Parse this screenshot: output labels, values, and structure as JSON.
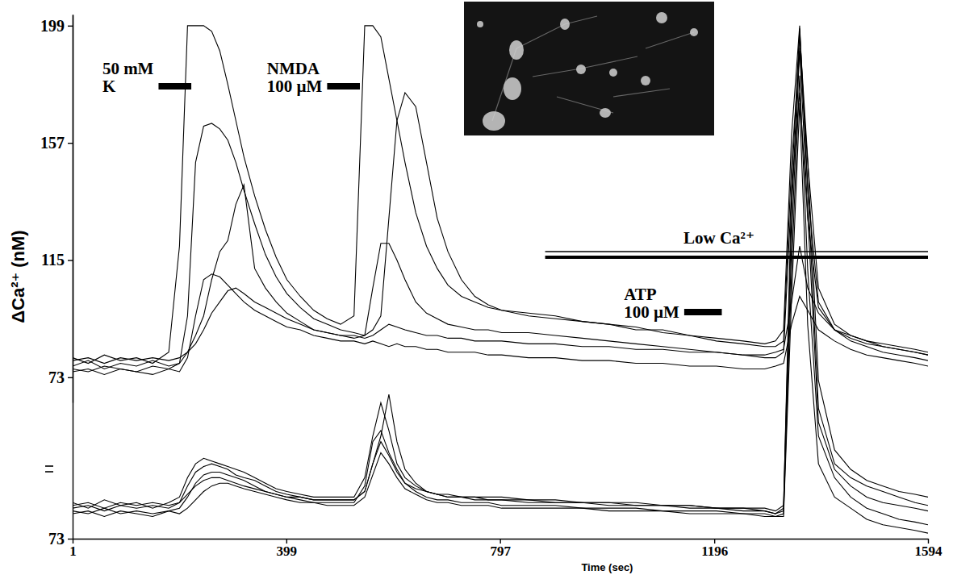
{
  "chart_data": [
    {
      "type": "line",
      "y_label": "ΔCa²⁺ (nM)",
      "color": "#000000",
      "x": [
        1,
        30,
        60,
        90,
        120,
        150,
        180,
        200,
        215,
        230,
        245,
        260,
        275,
        290,
        305,
        320,
        340,
        360,
        380,
        400,
        425,
        450,
        475,
        500,
        525,
        545,
        560,
        575,
        590,
        605,
        620,
        640,
        660,
        680,
        700,
        725,
        750,
        775,
        800,
        850,
        900,
        950,
        1000,
        1050,
        1100,
        1150,
        1200,
        1250,
        1290,
        1310,
        1325,
        1340,
        1355,
        1370,
        1390,
        1420,
        1450,
        1480,
        1510,
        1540,
        1570,
        1594
      ],
      "xlim": [
        1,
        1594
      ],
      "ylim": [
        64,
        203
      ],
      "yticks": [
        73,
        115,
        157,
        199
      ],
      "series": [
        {
          "values": [
            80,
            78,
            81,
            79,
            80,
            78,
            82,
            120,
            199,
            199,
            199,
            197,
            190,
            178,
            165,
            152,
            138,
            126,
            116,
            108,
            102,
            97,
            94,
            92,
            95,
            199,
            199,
            195,
            180,
            165,
            150,
            132,
            120,
            112,
            106,
            102,
            100,
            98,
            97,
            96,
            95,
            93,
            92,
            90,
            90,
            88,
            87,
            86,
            85,
            86,
            90,
            160,
            199,
            140,
            100,
            90,
            88,
            86,
            85,
            84,
            83,
            82
          ]
        },
        {
          "values": [
            77,
            79,
            76,
            78,
            77,
            79,
            77,
            78,
            95,
            150,
            163,
            164,
            162,
            158,
            150,
            140,
            128,
            117,
            109,
            103,
            98,
            94,
            92,
            90,
            89,
            88,
            90,
            95,
            130,
            165,
            175,
            170,
            150,
            130,
            118,
            108,
            102,
            99,
            97,
            95,
            94,
            93,
            92,
            91,
            89,
            88,
            86,
            85,
            84,
            84,
            86,
            150,
            190,
            150,
            105,
            92,
            88,
            86,
            84,
            83,
            82,
            81
          ]
        },
        {
          "values": [
            76,
            75,
            77,
            76,
            75,
            77,
            76,
            78,
            82,
            88,
            95,
            108,
            118,
            122,
            135,
            142,
            112,
            105,
            100,
            96,
            93,
            90,
            89,
            88,
            87,
            88,
            105,
            121,
            121,
            115,
            108,
            100,
            96,
            94,
            92,
            91,
            90,
            90,
            89,
            89,
            88,
            87,
            86,
            85,
            84,
            83,
            82,
            81,
            80,
            80,
            82,
            140,
            175,
            130,
            98,
            90,
            86,
            84,
            82,
            81,
            80,
            79
          ]
        },
        {
          "values": [
            79,
            80,
            78,
            80,
            79,
            80,
            79,
            80,
            82,
            85,
            90,
            96,
            100,
            104,
            105,
            103,
            100,
            98,
            96,
            94,
            92,
            90,
            89,
            88,
            88,
            87,
            88,
            90,
            92,
            91,
            90,
            89,
            88,
            88,
            87,
            87,
            86,
            86,
            86,
            85,
            85,
            84,
            84,
            83,
            83,
            82,
            82,
            81,
            81,
            82,
            83,
            100,
            120,
            105,
            96,
            90,
            87,
            85,
            84,
            83,
            82,
            81
          ]
        },
        {
          "values": [
            75,
            76,
            74,
            76,
            75,
            74,
            76,
            75,
            80,
            95,
            108,
            110,
            109,
            106,
            103,
            100,
            97,
            95,
            93,
            91,
            90,
            88,
            87,
            86,
            86,
            85,
            86,
            85,
            84,
            85,
            84,
            84,
            83,
            83,
            82,
            82,
            82,
            81,
            81,
            80,
            80,
            79,
            79,
            78,
            78,
            77,
            77,
            76,
            76,
            77,
            78,
            92,
            102,
            97,
            90,
            86,
            83,
            81,
            80,
            79,
            78,
            77
          ]
        }
      ],
      "annotations": [
        {
          "text": "50 mM\nK",
          "x": [
            161,
            222
          ]
        },
        {
          "text": "NMDA\n100 µM",
          "x": [
            475,
            536
          ]
        },
        {
          "text": "Low Ca²⁺",
          "x": [
            881,
            1594
          ],
          "line_style": "double"
        },
        {
          "text": "ATP\n100 µM",
          "x": [
            1140,
            1210
          ]
        }
      ]
    },
    {
      "type": "line",
      "x_label": "Time (sec)",
      "color": "#000000",
      "x": [
        1,
        30,
        60,
        90,
        120,
        150,
        180,
        200,
        215,
        230,
        245,
        260,
        275,
        290,
        305,
        320,
        340,
        360,
        380,
        400,
        425,
        450,
        475,
        500,
        525,
        545,
        560,
        575,
        590,
        605,
        620,
        640,
        660,
        680,
        700,
        725,
        750,
        775,
        800,
        850,
        900,
        950,
        1000,
        1050,
        1100,
        1150,
        1200,
        1250,
        1290,
        1310,
        1325,
        1340,
        1355,
        1370,
        1390,
        1420,
        1450,
        1480,
        1510,
        1540,
        1570,
        1594
      ],
      "xlim": [
        1,
        1594
      ],
      "xticks": [
        1,
        399,
        797,
        1196,
        1594
      ],
      "ylim": [
        73,
        262
      ],
      "yticks": [
        73
      ],
      "series": [
        {
          "values": [
            86,
            84,
            87,
            85,
            86,
            84,
            86,
            88,
            95,
            100,
            102,
            101,
            100,
            99,
            98,
            97,
            95,
            93,
            91,
            90,
            89,
            88,
            88,
            88,
            88,
            95,
            110,
            122,
            112,
            100,
            95,
            92,
            90,
            89,
            89,
            88,
            88,
            88,
            88,
            87,
            87,
            86,
            86,
            86,
            85,
            85,
            84,
            84,
            83,
            82,
            84,
            200,
            257,
            200,
            120,
            100,
            95,
            92,
            90,
            88,
            86,
            85
          ]
        },
        {
          "values": [
            84,
            85,
            83,
            85,
            84,
            85,
            84,
            86,
            92,
            97,
            99,
            100,
            99,
            98,
            96,
            95,
            94,
            92,
            90,
            89,
            88,
            87,
            87,
            87,
            87,
            90,
            100,
            110,
            125,
            108,
            98,
            93,
            90,
            89,
            88,
            88,
            87,
            87,
            87,
            86,
            86,
            86,
            85,
            85,
            85,
            84,
            84,
            83,
            83,
            82,
            83,
            180,
            250,
            190,
            115,
            98,
            92,
            88,
            86,
            85,
            84,
            83
          ]
        },
        {
          "values": [
            83,
            82,
            84,
            82,
            83,
            82,
            83,
            84,
            88,
            93,
            96,
            97,
            97,
            96,
            95,
            94,
            92,
            90,
            89,
            88,
            87,
            86,
            86,
            86,
            86,
            92,
            108,
            112,
            104,
            98,
            93,
            90,
            88,
            87,
            87,
            86,
            86,
            86,
            85,
            85,
            85,
            84,
            84,
            84,
            83,
            83,
            83,
            82,
            82,
            81,
            82,
            170,
            240,
            170,
            110,
            95,
            88,
            84,
            82,
            80,
            79,
            78
          ]
        },
        {
          "values": [
            85,
            86,
            84,
            86,
            85,
            86,
            85,
            86,
            89,
            92,
            94,
            95,
            95,
            94,
            93,
            92,
            91,
            90,
            89,
            88,
            88,
            87,
            87,
            87,
            87,
            90,
            100,
            108,
            103,
            97,
            93,
            91,
            90,
            89,
            88,
            88,
            88,
            87,
            87,
            87,
            86,
            86,
            86,
            85,
            85,
            85,
            84,
            84,
            84,
            83,
            85,
            190,
            255,
            210,
            130,
            105,
            98,
            94,
            92,
            90,
            89,
            88
          ]
        },
        {
          "values": [
            82,
            83,
            81,
            83,
            82,
            81,
            83,
            82,
            84,
            87,
            90,
            92,
            93,
            93,
            92,
            91,
            90,
            89,
            88,
            87,
            86,
            86,
            85,
            85,
            85,
            88,
            96,
            104,
            100,
            95,
            91,
            89,
            87,
            86,
            86,
            85,
            85,
            85,
            84,
            84,
            84,
            84,
            83,
            83,
            83,
            82,
            82,
            82,
            81,
            81,
            81,
            160,
            230,
            150,
            100,
            88,
            84,
            80,
            78,
            77,
            76,
            75
          ]
        }
      ]
    }
  ]
}
